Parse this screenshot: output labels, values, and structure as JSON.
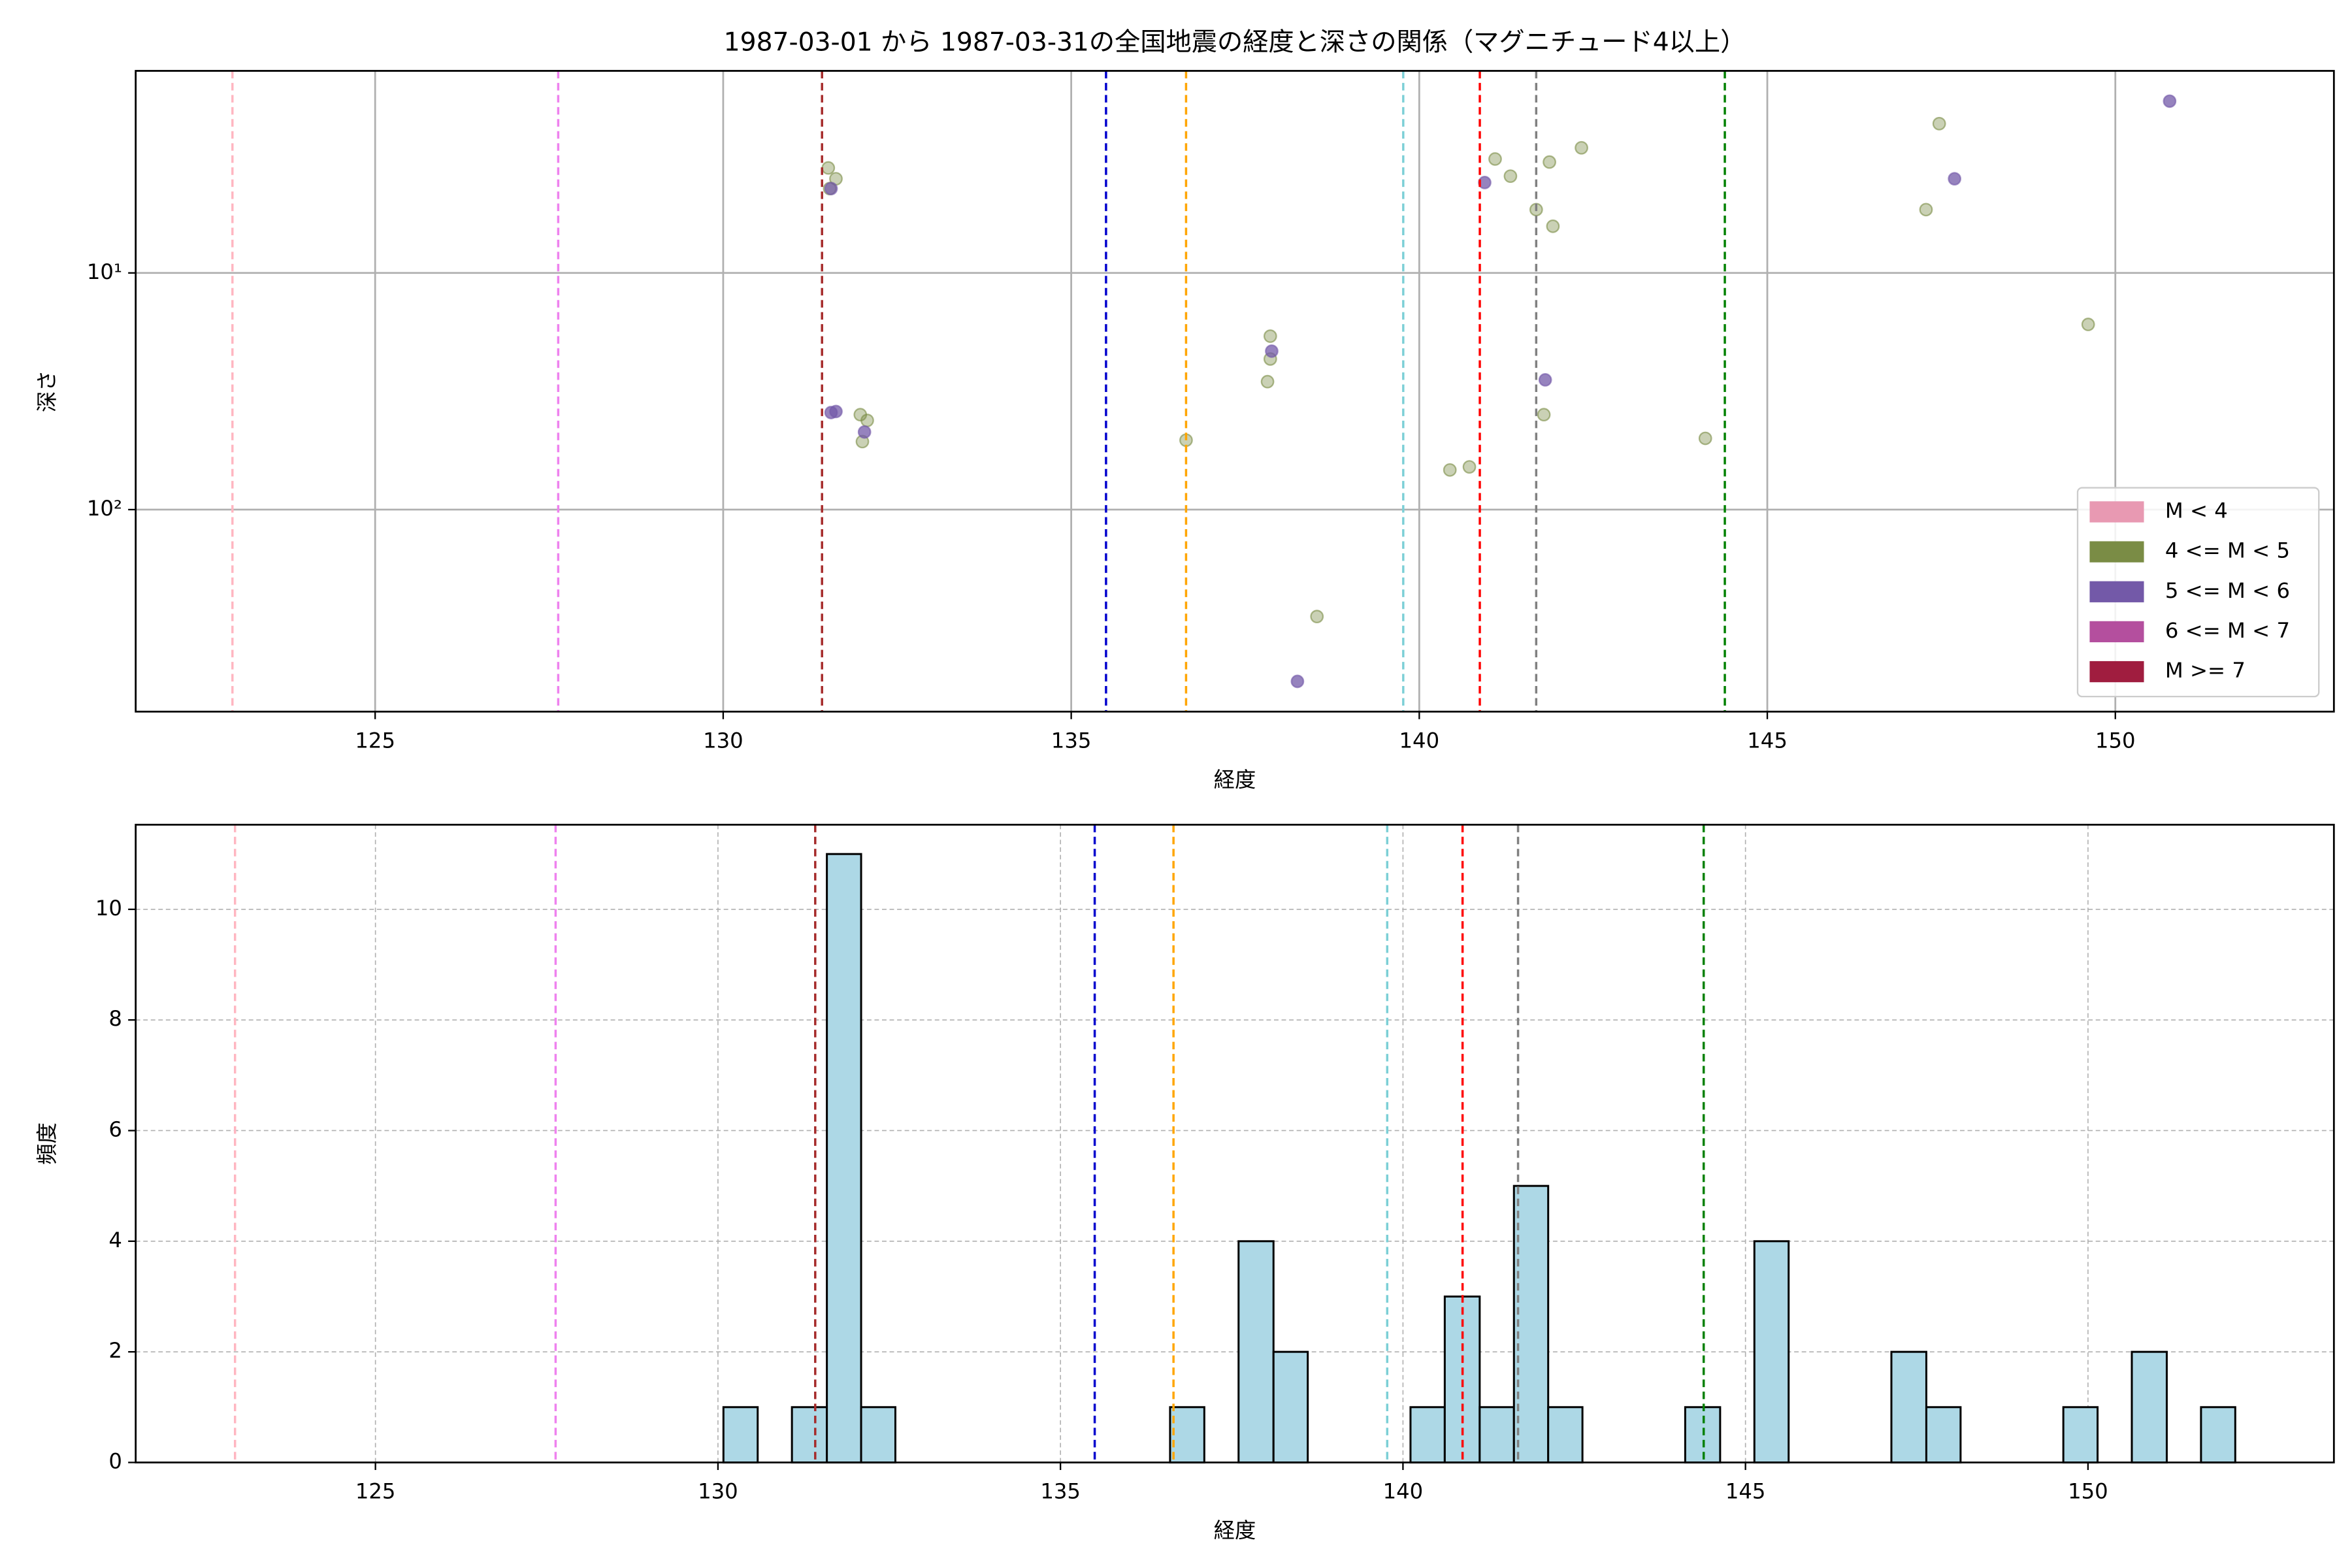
{
  "chart_data": [
    {
      "type": "scatter",
      "title": "1987-03-01 から 1987-03-31の全国地震の経度と深さの関係（マグニチュード4以上）",
      "xlabel": "経度",
      "ylabel": "深さ",
      "xlim": [
        121.56,
        153.14
      ],
      "xticks": [
        125,
        130,
        135,
        140,
        145,
        150
      ],
      "ylim": [
        714,
        1.4
      ],
      "yscale": "log",
      "yticks": [
        {
          "value": 10,
          "label": "10¹"
        },
        {
          "value": 100,
          "label": "10²"
        }
      ],
      "grid": true,
      "grid_style": "solid",
      "legend": "lower right",
      "vlines": [
        {
          "x": 122.95,
          "color": "#ffb6c1"
        },
        {
          "x": 127.63,
          "color": "#ee82ee"
        },
        {
          "x": 131.42,
          "color": "#a52a2a"
        },
        {
          "x": 135.5,
          "color": "#0000cd"
        },
        {
          "x": 136.65,
          "color": "#ffa500"
        },
        {
          "x": 139.77,
          "color": "#7ccfd6"
        },
        {
          "x": 140.87,
          "color": "#ff0000"
        },
        {
          "x": 141.68,
          "color": "#808080"
        },
        {
          "x": 144.39,
          "color": "#008000"
        }
      ],
      "series": [
        {
          "name": "M < 4",
          "color": "#e899b2",
          "x": [],
          "y": []
        },
        {
          "name": "4 <= M < 5",
          "color": "#7a8c45",
          "x": [
            131.51,
            131.62,
            131.53,
            131.97,
            132.07,
            132.0,
            137.86,
            137.86,
            137.82,
            136.65,
            138.53,
            140.44,
            140.72,
            141.09,
            141.31,
            141.87,
            142.33,
            141.68,
            141.92,
            141.79,
            144.11,
            147.47,
            147.28,
            149.61
          ],
          "y": [
            3.6,
            4.0,
            4.4,
            39.7,
            42,
            51.6,
            18.5,
            23.1,
            28.8,
            50.9,
            283,
            68,
            66,
            3.3,
            3.9,
            3.4,
            2.96,
            5.4,
            6.35,
            39.7,
            50,
            2.34,
            5.4,
            16.5
          ]
        },
        {
          "name": "5 <= M < 6",
          "color": "#7359a8",
          "x": [
            131.55,
            131.62,
            131.55,
            132.03,
            137.88,
            138.25,
            140.94,
            141.81,
            147.69,
            150.78
          ],
          "y": [
            4.4,
            38.5,
            38.9,
            47,
            21.4,
            532,
            4.15,
            28.3,
            4.0,
            1.88
          ]
        },
        {
          "name": "6 <= M < 7",
          "color": "#b44f9e",
          "x": [],
          "y": []
        },
        {
          "name": "M >= 7",
          "color": "#a01d3f",
          "x": [],
          "y": []
        }
      ]
    },
    {
      "type": "histogram",
      "xlabel": "経度",
      "ylabel": "頻度",
      "xlim": [
        121.5,
        153.59
      ],
      "xticks": [
        125,
        130,
        135,
        140,
        145,
        150
      ],
      "ylim": [
        0,
        11.53
      ],
      "yticks": [
        0,
        2,
        4,
        6,
        8,
        10
      ],
      "grid": true,
      "grid_style": "dashed",
      "color": "#add8e6",
      "edgecolor": "#000000",
      "vlines": [
        {
          "x": 122.95,
          "color": "#ffb6c1"
        },
        {
          "x": 127.63,
          "color": "#ee82ee"
        },
        {
          "x": 131.42,
          "color": "#a52a2a"
        },
        {
          "x": 135.5,
          "color": "#0000cd"
        },
        {
          "x": 136.65,
          "color": "#ffa500"
        },
        {
          "x": 139.77,
          "color": "#7ccfd6"
        },
        {
          "x": 140.87,
          "color": "#ff0000"
        },
        {
          "x": 141.68,
          "color": "#808080"
        },
        {
          "x": 144.39,
          "color": "#008000"
        }
      ],
      "bins": [
        130.08,
        130.58,
        131.08,
        131.59,
        132.09,
        132.59,
        133.09,
        133.59,
        134.09,
        134.59,
        135.1,
        135.6,
        136.1,
        136.6,
        137.1,
        137.6,
        138.11,
        138.61,
        139.11,
        139.61,
        140.11,
        140.61,
        141.12,
        141.62,
        142.12,
        142.62,
        143.12,
        143.62,
        144.12,
        144.63,
        145.13,
        145.63,
        146.13,
        146.63,
        147.13,
        147.64,
        148.14,
        148.64,
        149.14,
        149.64,
        150.14,
        150.64,
        151.15,
        151.65,
        152.15
      ],
      "values": [
        1,
        0,
        1,
        11,
        1,
        0,
        0,
        0,
        0,
        0,
        0,
        0,
        0,
        1,
        0,
        4,
        2,
        0,
        0,
        0,
        1,
        3,
        1,
        5,
        1,
        0,
        0,
        0,
        1,
        0,
        4,
        0,
        0,
        0,
        2,
        1,
        0,
        0,
        0,
        1,
        0,
        2,
        0,
        1
      ]
    }
  ]
}
